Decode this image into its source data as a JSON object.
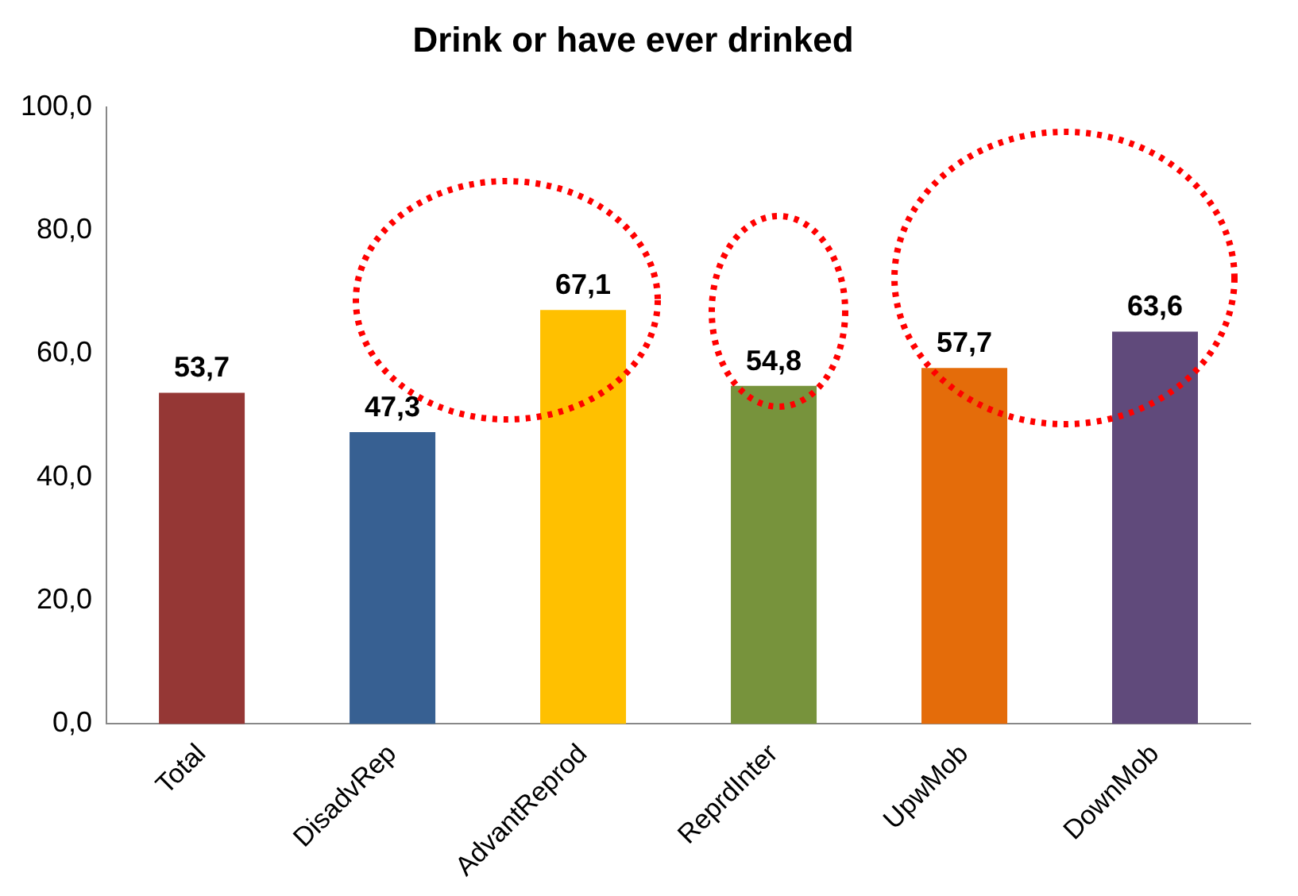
{
  "chart_data": {
    "type": "bar",
    "title": "Drink or have ever drinked",
    "categories": [
      "Total",
      "DisadvRep",
      "AdvantReprod",
      "ReprdInter",
      "UpwMob",
      "DownMob"
    ],
    "values": [
      53.7,
      47.3,
      67.1,
      54.8,
      57.7,
      63.6
    ],
    "value_labels": [
      "53,7",
      "47,3",
      "67,1",
      "54,8",
      "57,7",
      "63,6"
    ],
    "colors": [
      "#953735",
      "#376092",
      "#ffc000",
      "#77933c",
      "#e46c0a",
      "#604a7b"
    ],
    "ylim": [
      0,
      100
    ],
    "yticks": [
      {
        "value": 0,
        "label": "0,0"
      },
      {
        "value": 20,
        "label": "20,0"
      },
      {
        "value": 40,
        "label": "40,0"
      },
      {
        "value": 60,
        "label": "60,0"
      },
      {
        "value": 80,
        "label": "80,0"
      },
      {
        "value": 100,
        "label": "100,0"
      }
    ],
    "grid": false,
    "legend": false
  }
}
